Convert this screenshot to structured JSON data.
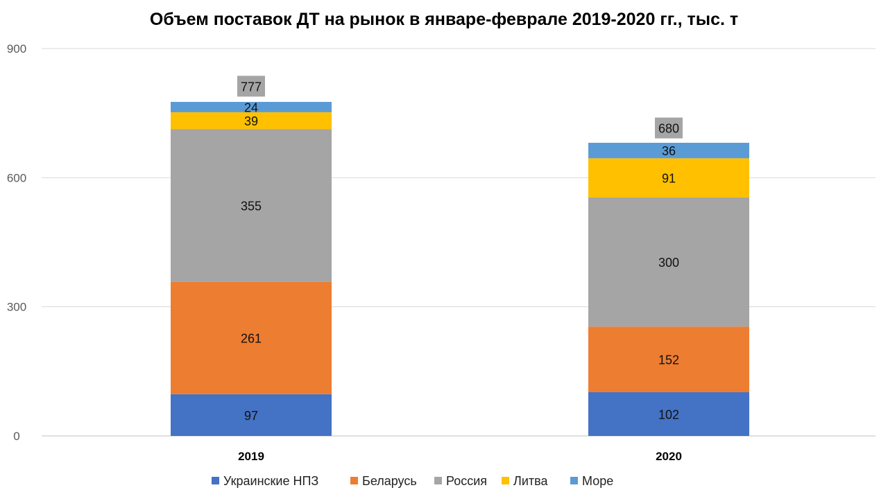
{
  "chart_data": {
    "type": "bar",
    "stacked": true,
    "title": "Объем поставок ДТ на рынок в январе-феврале 2019-2020 гг., тыс. т",
    "categories": [
      "2019",
      "2020"
    ],
    "series": [
      {
        "name": "Украинские  НПЗ",
        "color": "#4472C4",
        "values": [
          97,
          102
        ]
      },
      {
        "name": "Беларусь",
        "color": "#ED7D31",
        "values": [
          261,
          152
        ]
      },
      {
        "name": "Россия",
        "color": "#A5A5A5",
        "values": [
          355,
          300
        ]
      },
      {
        "name": "Литва",
        "color": "#FFC000",
        "values": [
          39,
          91
        ]
      },
      {
        "name": "Море",
        "color": "#5B9BD5",
        "values": [
          24,
          36
        ]
      }
    ],
    "totals": [
      777,
      680
    ],
    "ylim": [
      0,
      900
    ],
    "yticks": [
      0,
      300,
      600,
      900
    ],
    "grid": true,
    "legend": "bottom",
    "xlabel": "",
    "ylabel": ""
  }
}
